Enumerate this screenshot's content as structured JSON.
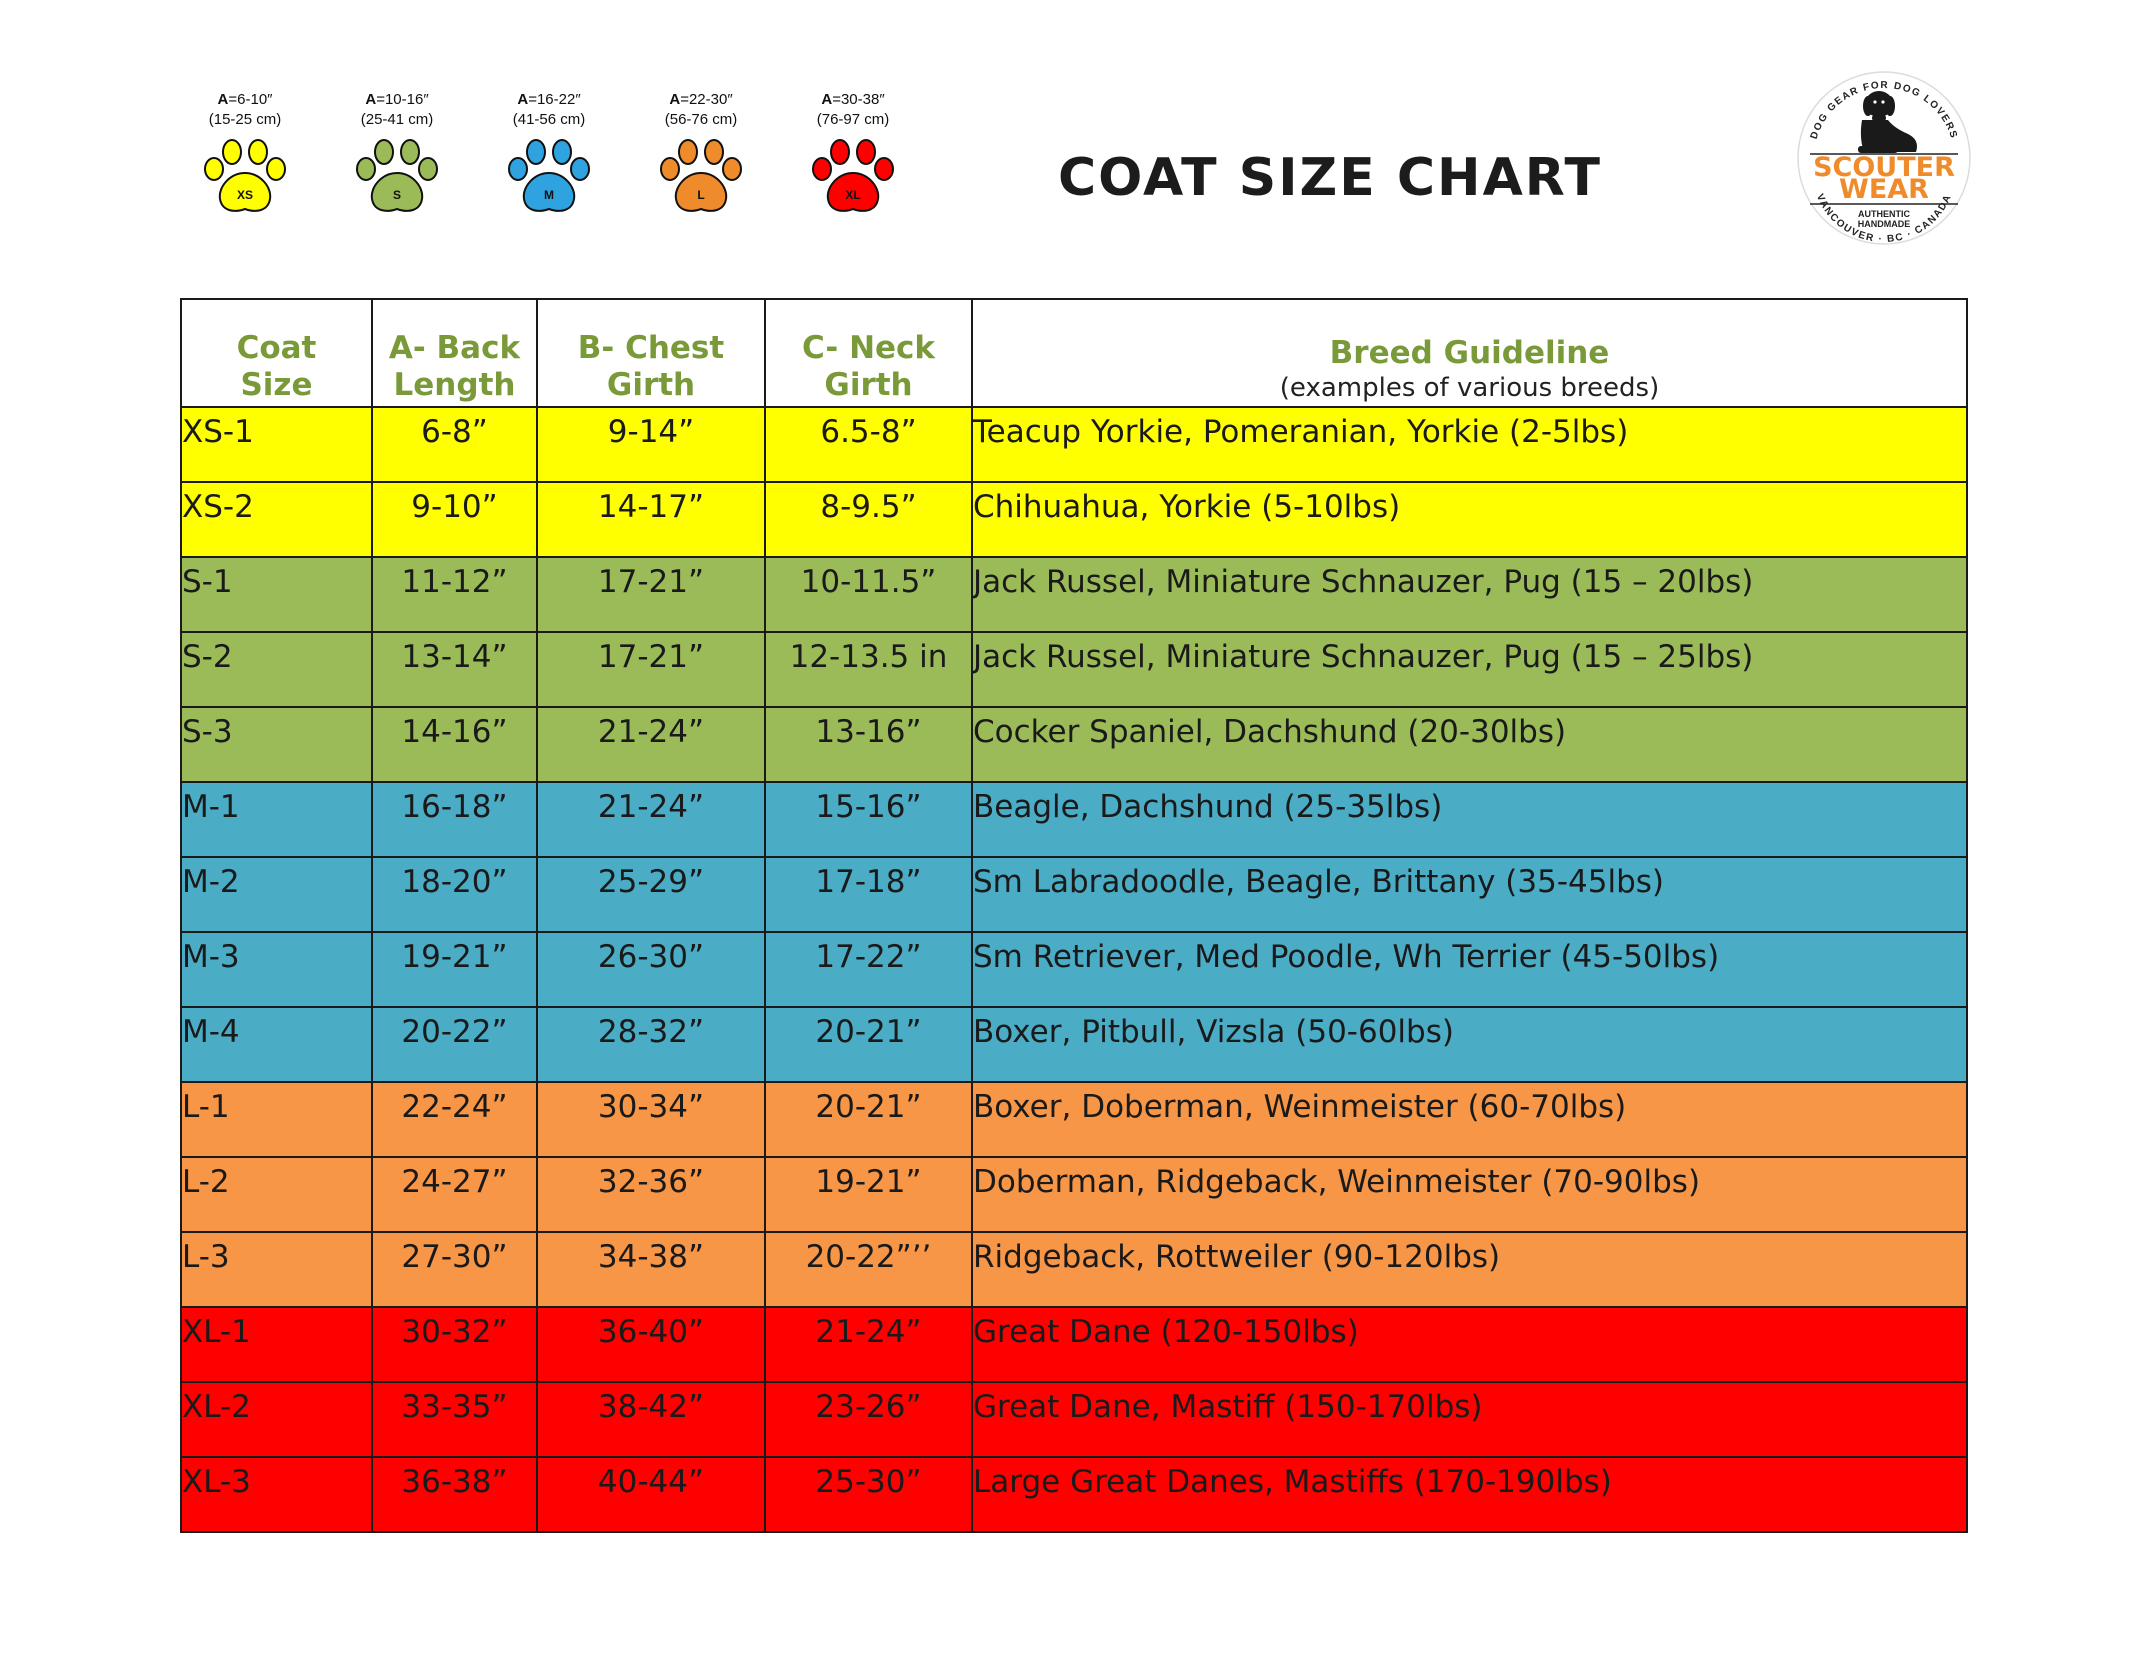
{
  "title": "COAT SIZE CHART",
  "paw_legend": [
    {
      "label": "XS",
      "a_prefix": "A",
      "range_in": "=6-10″",
      "range_cm": "(15-25 cm)",
      "color": "#ffff00"
    },
    {
      "label": "S",
      "a_prefix": "A",
      "range_in": "=10-16″",
      "range_cm": "(25-41 cm)",
      "color": "#9bbb59"
    },
    {
      "label": "M",
      "a_prefix": "A",
      "range_in": "=16-22″",
      "range_cm": "(41-56 cm)",
      "color": "#2ea3e0"
    },
    {
      "label": "L",
      "a_prefix": "A",
      "range_in": "=22-30″",
      "range_cm": "(56-76 cm)",
      "color": "#f08b2c"
    },
    {
      "label": "XL",
      "a_prefix": "A",
      "range_in": "=30-38″",
      "range_cm": "(76-97 cm)",
      "color": "#ff0000"
    }
  ],
  "logo": {
    "top_arc": "DOG GEAR FOR DOG LOVERS",
    "line1": "SCOUTER",
    "line2": "WEAR",
    "tag1": "AUTHENTIC",
    "tag2": "HANDMADE",
    "bottom_arc": "VANCOUVER · BC · CANADA",
    "color": "#f08b2c"
  },
  "table": {
    "headers": [
      {
        "line1": "Coat",
        "line2": "Size",
        "sub": ""
      },
      {
        "line1": "A- Back",
        "line2": "Length",
        "sub": ""
      },
      {
        "line1": "B- Chest",
        "line2": "Girth",
        "sub": ""
      },
      {
        "line1": "C- Neck",
        "line2": "Girth",
        "sub": ""
      },
      {
        "line1": "Breed Guideline",
        "line2": "",
        "sub": "(examples of various breeds)"
      }
    ],
    "rows": [
      {
        "group": "xs",
        "size": "XS-1",
        "back": "6-8”",
        "chest": "9-14”",
        "neck": "6.5-8”",
        "breed": "Teacup Yorkie, Pomeranian, Yorkie (2-5lbs)"
      },
      {
        "group": "xs",
        "size": "XS-2",
        "back": "9-10”",
        "chest": "14-17”",
        "neck": "8-9.5”",
        "breed": "Chihuahua, Yorkie (5-10lbs)"
      },
      {
        "group": "s",
        "size": "S-1",
        "back": "11-12”",
        "chest": "17-21”",
        "neck": "10-11.5”",
        "breed": "Jack Russel, Miniature Schnauzer, Pug (15 – 20lbs)"
      },
      {
        "group": "s",
        "size": "S-2",
        "back": "13-14”",
        "chest": "17-21”",
        "neck": "12-13.5 in",
        "breed": "Jack Russel, Miniature Schnauzer, Pug (15 – 25lbs)"
      },
      {
        "group": "s",
        "size": "S-3",
        "back": "14-16”",
        "chest": "21-24”",
        "neck": "13-16”",
        "breed": "Cocker Spaniel, Dachshund (20-30lbs)"
      },
      {
        "group": "m",
        "size": "M-1",
        "back": "16-18”",
        "chest": "21-24”",
        "neck": "15-16”",
        "breed": "Beagle, Dachshund (25-35lbs)"
      },
      {
        "group": "m",
        "size": "M-2",
        "back": "18-20”",
        "chest": "25-29”",
        "neck": "17-18”",
        "breed": "Sm Labradoodle, Beagle, Brittany (35-45lbs)"
      },
      {
        "group": "m",
        "size": "M-3",
        "back": "19-21”",
        "chest": "26-30”",
        "neck": "17-22”",
        "breed": "Sm  Retriever, Med Poodle, Wh Terrier (45-50lbs)"
      },
      {
        "group": "m",
        "size": "M-4",
        "back": "20-22”",
        "chest": "28-32”",
        "neck": "20-21”",
        "breed": "Boxer, Pitbull, Vizsla (50-60lbs)"
      },
      {
        "group": "l",
        "size": "L-1",
        "back": "22-24”",
        "chest": "30-34”",
        "neck": "20-21”",
        "breed": "Boxer, Doberman, Weinmeister (60-70lbs)"
      },
      {
        "group": "l",
        "size": "L-2",
        "back": "24-27”",
        "chest": "32-36”",
        "neck": "19-21”",
        "breed": "Doberman, Ridgeback, Weinmeister (70-90lbs)"
      },
      {
        "group": "l",
        "size": "L-3",
        "back": "27-30”",
        "chest": "34-38”",
        "neck": "20-22”’’",
        "breed": "Ridgeback, Rottweiler (90-120lbs)"
      },
      {
        "group": "xl",
        "size": "XL-1",
        "back": "30-32”",
        "chest": "36-40”",
        "neck": "21-24”",
        "breed": "Great Dane (120-150lbs)"
      },
      {
        "group": "xl",
        "size": "XL-2",
        "back": "33-35”",
        "chest": "38-42”",
        "neck": "23-26”",
        "breed": "Great Dane, Mastiff (150-170lbs)"
      },
      {
        "group": "xl",
        "size": "XL-3",
        "back": "36-38”",
        "chest": "40-44”",
        "neck": "25-30”",
        "breed": "Large Great Danes, Mastiffs (170-190lbs)"
      }
    ]
  }
}
